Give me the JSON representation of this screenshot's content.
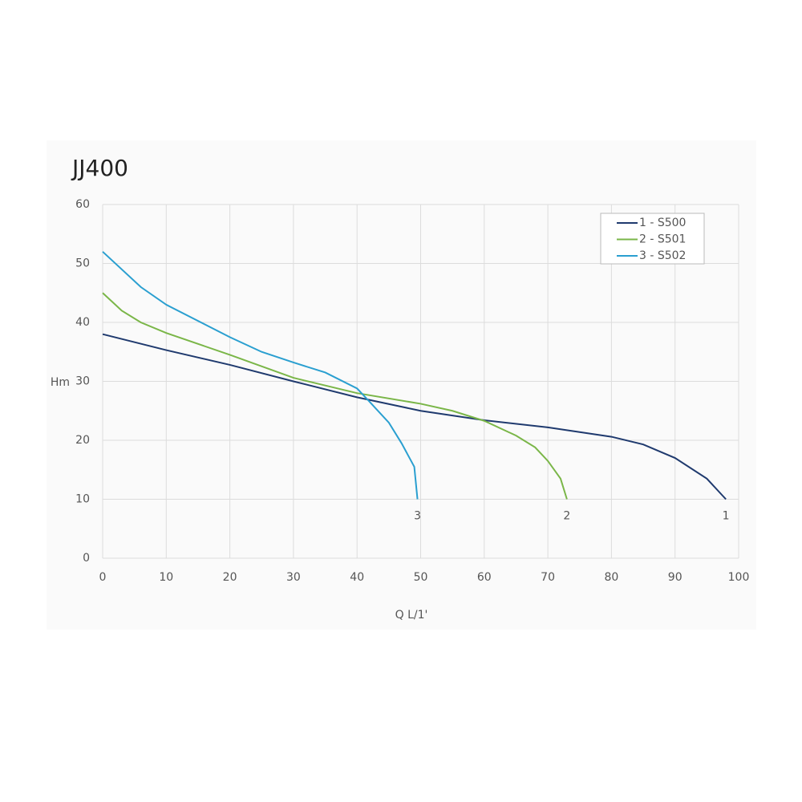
{
  "chart_data": {
    "type": "line",
    "title": "JJ400",
    "x_label": "Q L/1'",
    "y_label": "Hm",
    "xlim": [
      0,
      100
    ],
    "xticks": [
      0,
      10,
      20,
      30,
      40,
      50,
      60,
      70,
      80,
      90,
      100
    ],
    "ylim": [
      0,
      60
    ],
    "yticks": [
      0,
      10,
      20,
      30,
      40,
      50,
      60
    ],
    "grid": true,
    "legend": "upper right",
    "series": [
      {
        "name": "1 - S500",
        "label": "1",
        "color": "#1f3a6e",
        "x": [
          0,
          10,
          20,
          30,
          40,
          50,
          60,
          70,
          80,
          85,
          90,
          95,
          98
        ],
        "values": [
          38,
          35.3,
          32.8,
          30,
          27.3,
          25,
          23.4,
          22.2,
          20.6,
          19.3,
          17,
          13.5,
          10
        ]
      },
      {
        "name": "2 - S501",
        "label": "2",
        "color": "#7ab648",
        "x": [
          0,
          3,
          6,
          10,
          20,
          30,
          40,
          50,
          55,
          60,
          65,
          68,
          70,
          72,
          73
        ],
        "values": [
          45,
          42,
          40,
          38.2,
          34.5,
          30.6,
          28,
          26.2,
          25,
          23.3,
          20.8,
          18.8,
          16.5,
          13.5,
          10
        ]
      },
      {
        "name": "3 - S502",
        "label": "3",
        "color": "#2a9fd0",
        "x": [
          0,
          6,
          10,
          20,
          25,
          30,
          35,
          40,
          42,
          45,
          47,
          49,
          49.5
        ],
        "values": [
          52,
          46,
          43,
          37.5,
          35,
          33.2,
          31.5,
          28.8,
          26.5,
          23,
          19.5,
          15.5,
          10
        ]
      }
    ]
  }
}
